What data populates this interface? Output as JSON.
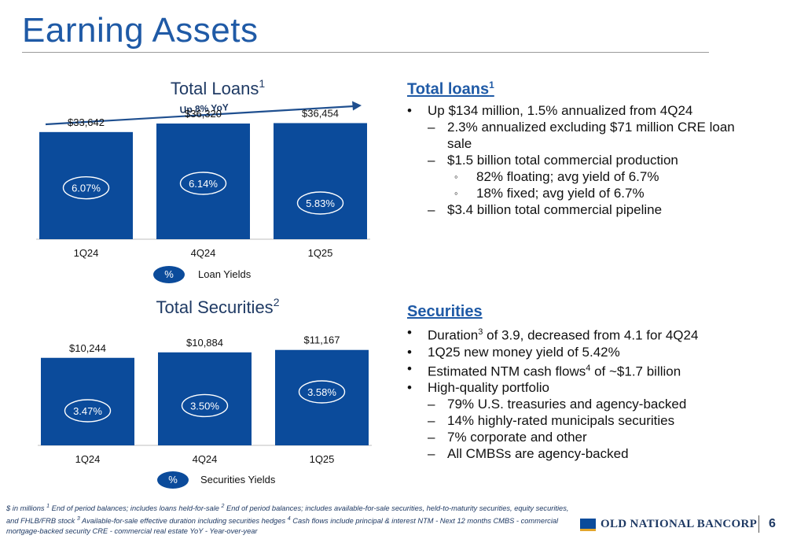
{
  "page": {
    "title": "Earning Assets",
    "page_number": "6"
  },
  "loans_chart": {
    "title": "Total Loans",
    "title_sup": "1",
    "trend_label": "Up 8% YoY",
    "legend_symbol": "%",
    "legend_label": "Loan Yields"
  },
  "securities_chart": {
    "title": "Total Securities",
    "title_sup": "2",
    "legend_symbol": "%",
    "legend_label": "Securities Yields"
  },
  "chart_data": [
    {
      "type": "bar",
      "title": "Total Loans",
      "categories": [
        "1Q24",
        "4Q24",
        "1Q25"
      ],
      "values": [
        33642,
        36320,
        36454
      ],
      "value_labels": [
        "$33,642",
        "$36,320",
        "$36,454"
      ],
      "yields": [
        "6.07%",
        "6.14%",
        "5.83%"
      ],
      "yield_values": [
        6.07,
        6.14,
        5.83
      ],
      "ylim": [
        0,
        42000
      ],
      "grid": false
    },
    {
      "type": "bar",
      "title": "Total Securities",
      "categories": [
        "1Q24",
        "4Q24",
        "1Q25"
      ],
      "values": [
        10244,
        10884,
        11167
      ],
      "value_labels": [
        "$10,244",
        "$10,884",
        "$11,167"
      ],
      "yields": [
        "3.47%",
        "3.50%",
        "3.58%"
      ],
      "yield_values": [
        3.47,
        3.5,
        3.58
      ],
      "ylim": [
        0,
        12800
      ],
      "grid": false
    }
  ],
  "loans_panel": {
    "heading": "Total loans",
    "heading_sup": "1",
    "b1": "Up $134 million, 1.5% annualized from 4Q24",
    "b1a": "2.3% annualized excluding $71 million CRE loan sale",
    "b1b": "$1.5 billion total commercial production",
    "b1b_i": "82% floating; avg yield of 6.7%",
    "b1b_ii": "18% fixed; avg yield of 6.7%",
    "b1c": "$3.4 billion total commercial pipeline"
  },
  "securities_panel": {
    "heading": "Securities",
    "b1_pre": "Duration",
    "b1_sup": "3",
    "b1_post": " of 3.9, decreased from 4.1 for 4Q24",
    "b2": "1Q25 new money yield of 5.42%",
    "b3_pre": "Estimated NTM cash flows",
    "b3_sup": "4",
    "b3_post": " of ~$1.7 billion",
    "b4": "High-quality portfolio",
    "b4a": "79% U.S. treasuries and agency-backed",
    "b4b": "14% highly-rated municipals securities",
    "b4c": "7% corporate and other",
    "b4d": "All CMBSs are agency-backed"
  },
  "markers": {
    "bullet": "•",
    "dash": "–",
    "circle": "◦"
  },
  "footnote": {
    "p1": "$ in millions  ",
    "s1": "1",
    "p2": " End of period balances; includes loans held-for-sale  ",
    "s2": "2",
    "p3": " End of period balances; includes available-for-sale securities, held-to-maturity securities, equity securities, and FHLB/FRB stock  ",
    "s3": "3",
    "p4": " Available-for-sale effective duration including securities hedges  ",
    "s4": "4",
    "p5": " Cash flows include principal & interest   NTM - Next 12 months   CMBS - commercial mortgage-backed security    CRE - commercial real estate    YoY - Year-over-year"
  },
  "logo": {
    "text": "OLD NATIONAL BANCORP",
    "icon": "bank-logo-icon",
    "colors": {
      "primary": "#0b4b9b",
      "accent": "#e3a52b"
    }
  },
  "colors": {
    "title": "#1f5aa6",
    "bar": "#0b4b9b",
    "heading": "#1f5aa6"
  }
}
